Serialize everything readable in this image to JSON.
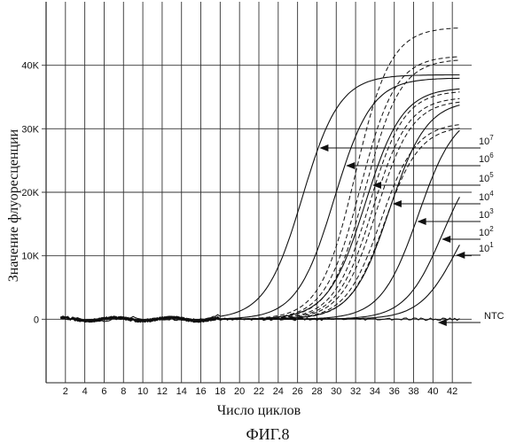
{
  "chart_data": {
    "type": "line",
    "xlabel": "Число циклов",
    "ylabel": "Значение флуоресценции",
    "caption": "ФИГ.8",
    "x_ticks": [
      "2",
      "4",
      "6",
      "8",
      "10",
      "12",
      "14",
      "16",
      "18",
      "20",
      "22",
      "24",
      "26",
      "28",
      "30",
      "32",
      "34",
      "36",
      "38",
      "40",
      "42"
    ],
    "y_ticks": [
      "0",
      "10K",
      "20K",
      "30K",
      "40K"
    ],
    "xlim": [
      0,
      44
    ],
    "ylim": [
      -10000,
      50000
    ],
    "grid": true,
    "series": [
      {
        "name": "10⁷",
        "style": "solid",
        "midpoint": 26.5,
        "plateau": 38500
      },
      {
        "name": "10⁶",
        "style": "solid",
        "midpoint": 29.8,
        "plateau": 38000
      },
      {
        "name": "10⁵",
        "style": "solid",
        "midpoint": 33.0,
        "plateau": 36500
      },
      {
        "name": "10⁴",
        "style": "solid",
        "midpoint": 35.5,
        "plateau": 34500
      },
      {
        "name": "10³",
        "style": "solid",
        "midpoint": 38.5,
        "plateau": 33000
      },
      {
        "name": "10²",
        "style": "solid",
        "midpoint": 41.0,
        "plateau": 27000
      },
      {
        "name": "10¹",
        "style": "solid",
        "midpoint": 42.5,
        "plateau": 22000
      },
      {
        "name": "NTC",
        "style": "solid",
        "midpoint": null,
        "plateau": 0
      }
    ],
    "dashed_series": [
      {
        "midpoint": 32.0,
        "plateau": 46000
      },
      {
        "midpoint": 32.5,
        "plateau": 41500
      },
      {
        "midpoint": 33.0,
        "plateau": 41000
      },
      {
        "midpoint": 33.4,
        "plateau": 36000
      },
      {
        "midpoint": 33.8,
        "plateau": 35000
      },
      {
        "midpoint": 34.2,
        "plateau": 34500
      },
      {
        "midpoint": 34.6,
        "plateau": 31000
      },
      {
        "midpoint": 35.0,
        "plateau": 30500
      }
    ],
    "labels": [
      {
        "text": "10",
        "sup": "7",
        "series": "10⁷"
      },
      {
        "text": "10",
        "sup": "6",
        "series": "10⁶"
      },
      {
        "text": "10",
        "sup": "5",
        "series": "10⁵"
      },
      {
        "text": "10",
        "sup": "4",
        "series": "10⁴"
      },
      {
        "text": "10",
        "sup": "3",
        "series": "10³"
      },
      {
        "text": "10",
        "sup": "2",
        "series": "10²"
      },
      {
        "text": "10",
        "sup": "1",
        "series": "10¹"
      },
      {
        "text": "NTC",
        "sup": "",
        "series": "NTC"
      }
    ]
  }
}
